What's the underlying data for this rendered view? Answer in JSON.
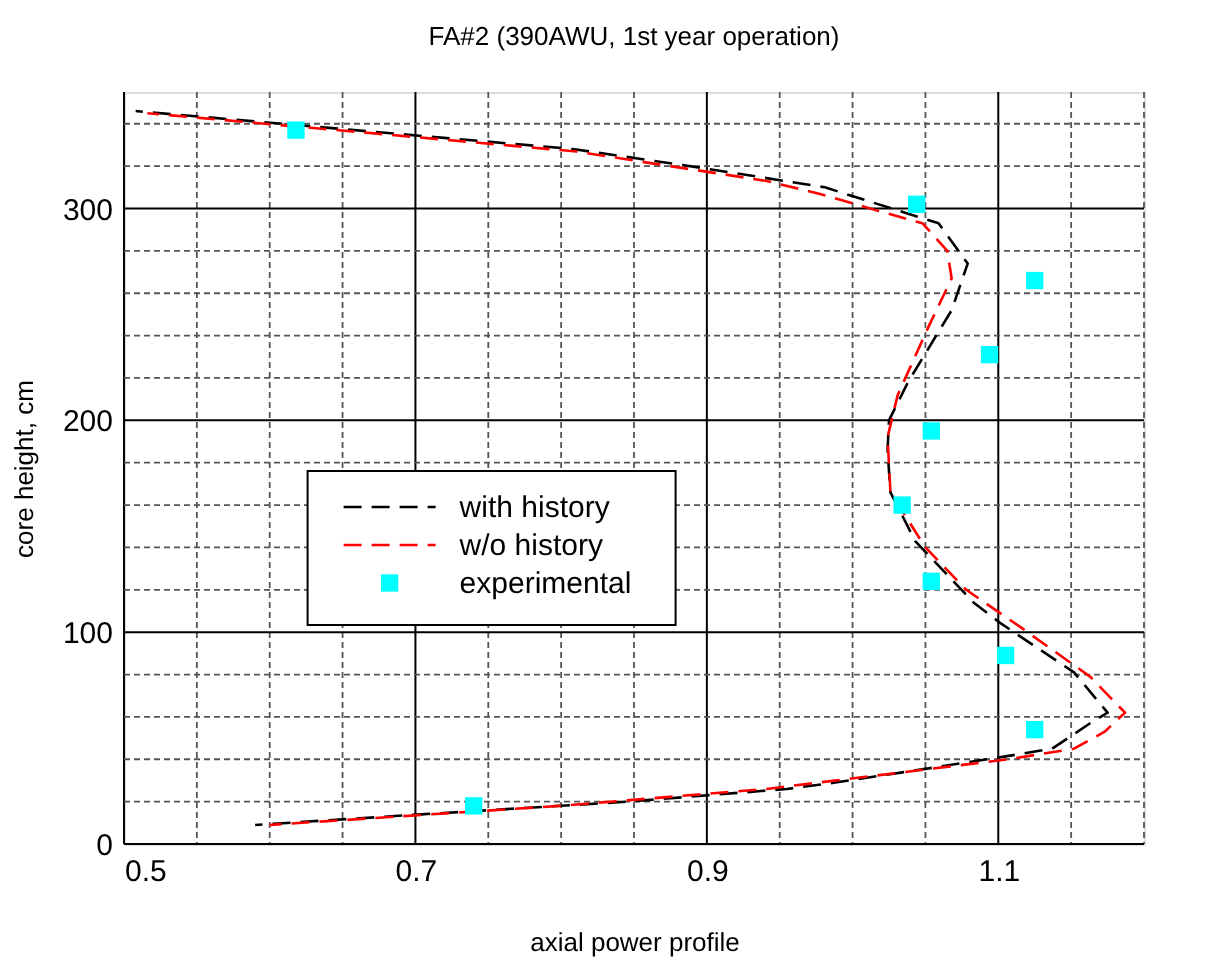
{
  "chart_data": {
    "type": "line",
    "title": "FA#2 (390AWU, 1st year operation)",
    "xlabel": "axial power profile",
    "ylabel": "core height, cm",
    "xlim": [
      0.5,
      1.2
    ],
    "ylim": [
      0,
      355
    ],
    "xticks": [
      0.5,
      {
        "value": 0.55,
        "label": null
      },
      {
        "value": 0.6,
        "label": null
      },
      {
        "value": 0.65,
        "label": null
      },
      0.7,
      {
        "value": 0.75,
        "label": null
      },
      {
        "value": 0.8,
        "label": null
      },
      {
        "value": 0.85,
        "label": null
      },
      0.9,
      {
        "value": 0.95,
        "label": null
      },
      {
        "value": 1.0,
        "label": null
      },
      {
        "value": 1.05,
        "label": null
      },
      1.1,
      {
        "value": 1.15,
        "label": null
      },
      {
        "value": 1.2,
        "label": null
      }
    ],
    "yticks": [
      0,
      {
        "value": 20,
        "label": null
      },
      {
        "value": 40,
        "label": null
      },
      {
        "value": 60,
        "label": null
      },
      {
        "value": 80,
        "label": null
      },
      100,
      {
        "value": 120,
        "label": null
      },
      {
        "value": 140,
        "label": null
      },
      {
        "value": 160,
        "label": null
      },
      {
        "value": 180,
        "label": null
      },
      200,
      {
        "value": 220,
        "label": null
      },
      {
        "value": 240,
        "label": null
      },
      {
        "value": 260,
        "label": null
      },
      {
        "value": 280,
        "label": null
      },
      300,
      {
        "value": 320,
        "label": null
      },
      {
        "value": 340,
        "label": null
      }
    ],
    "grid": true,
    "legend": "left",
    "series": [
      {
        "name": "with history",
        "line_style": "dashed",
        "marker": "none",
        "color": "#000000",
        "x": [
          0.508,
          0.809,
          0.898,
          0.981,
          1.036,
          1.059,
          1.079,
          1.068,
          1.038,
          1.025,
          1.024,
          1.026,
          1.043,
          1.083,
          1.102,
          1.152,
          1.175,
          1.163,
          1.137,
          1.102,
          1.036,
          0.988,
          0.955,
          0.846,
          0.704,
          0.59
        ],
        "values": [
          346,
          328,
          319,
          310,
          298,
          293,
          274,
          252,
          218,
          200,
          186,
          166,
          143,
          114,
          104,
          81,
          62,
          57,
          45,
          41,
          34,
          29,
          26,
          20,
          14,
          9
        ]
      },
      {
        "name": "w/o history",
        "line_style": "dashed",
        "marker": "none",
        "color": "#ff0000",
        "x": [
          0.516,
          0.809,
          0.941,
          0.977,
          1.017,
          1.048,
          1.065,
          1.068,
          1.052,
          1.031,
          1.024,
          1.026,
          1.05,
          1.078,
          1.116,
          1.163,
          1.187,
          1.173,
          1.152,
          1.107,
          1.036,
          0.941,
          0.799,
          0.6
        ],
        "values": [
          345,
          327,
          313,
          307,
          299,
          293,
          280,
          267,
          244,
          212,
          192,
          166,
          140,
          120,
          102,
          79,
          62,
          53,
          45,
          40,
          34,
          26,
          18,
          9
        ]
      },
      {
        "name": "experimental",
        "type": "scatter",
        "marker": "square",
        "color": "#00ffff",
        "x": [
          0.618,
          1.044,
          1.125,
          1.094,
          1.054,
          1.034,
          1.054,
          1.105,
          1.125,
          0.74
        ],
        "values": [
          337,
          302,
          266,
          231,
          195,
          160,
          124,
          89,
          54,
          18
        ]
      }
    ]
  }
}
